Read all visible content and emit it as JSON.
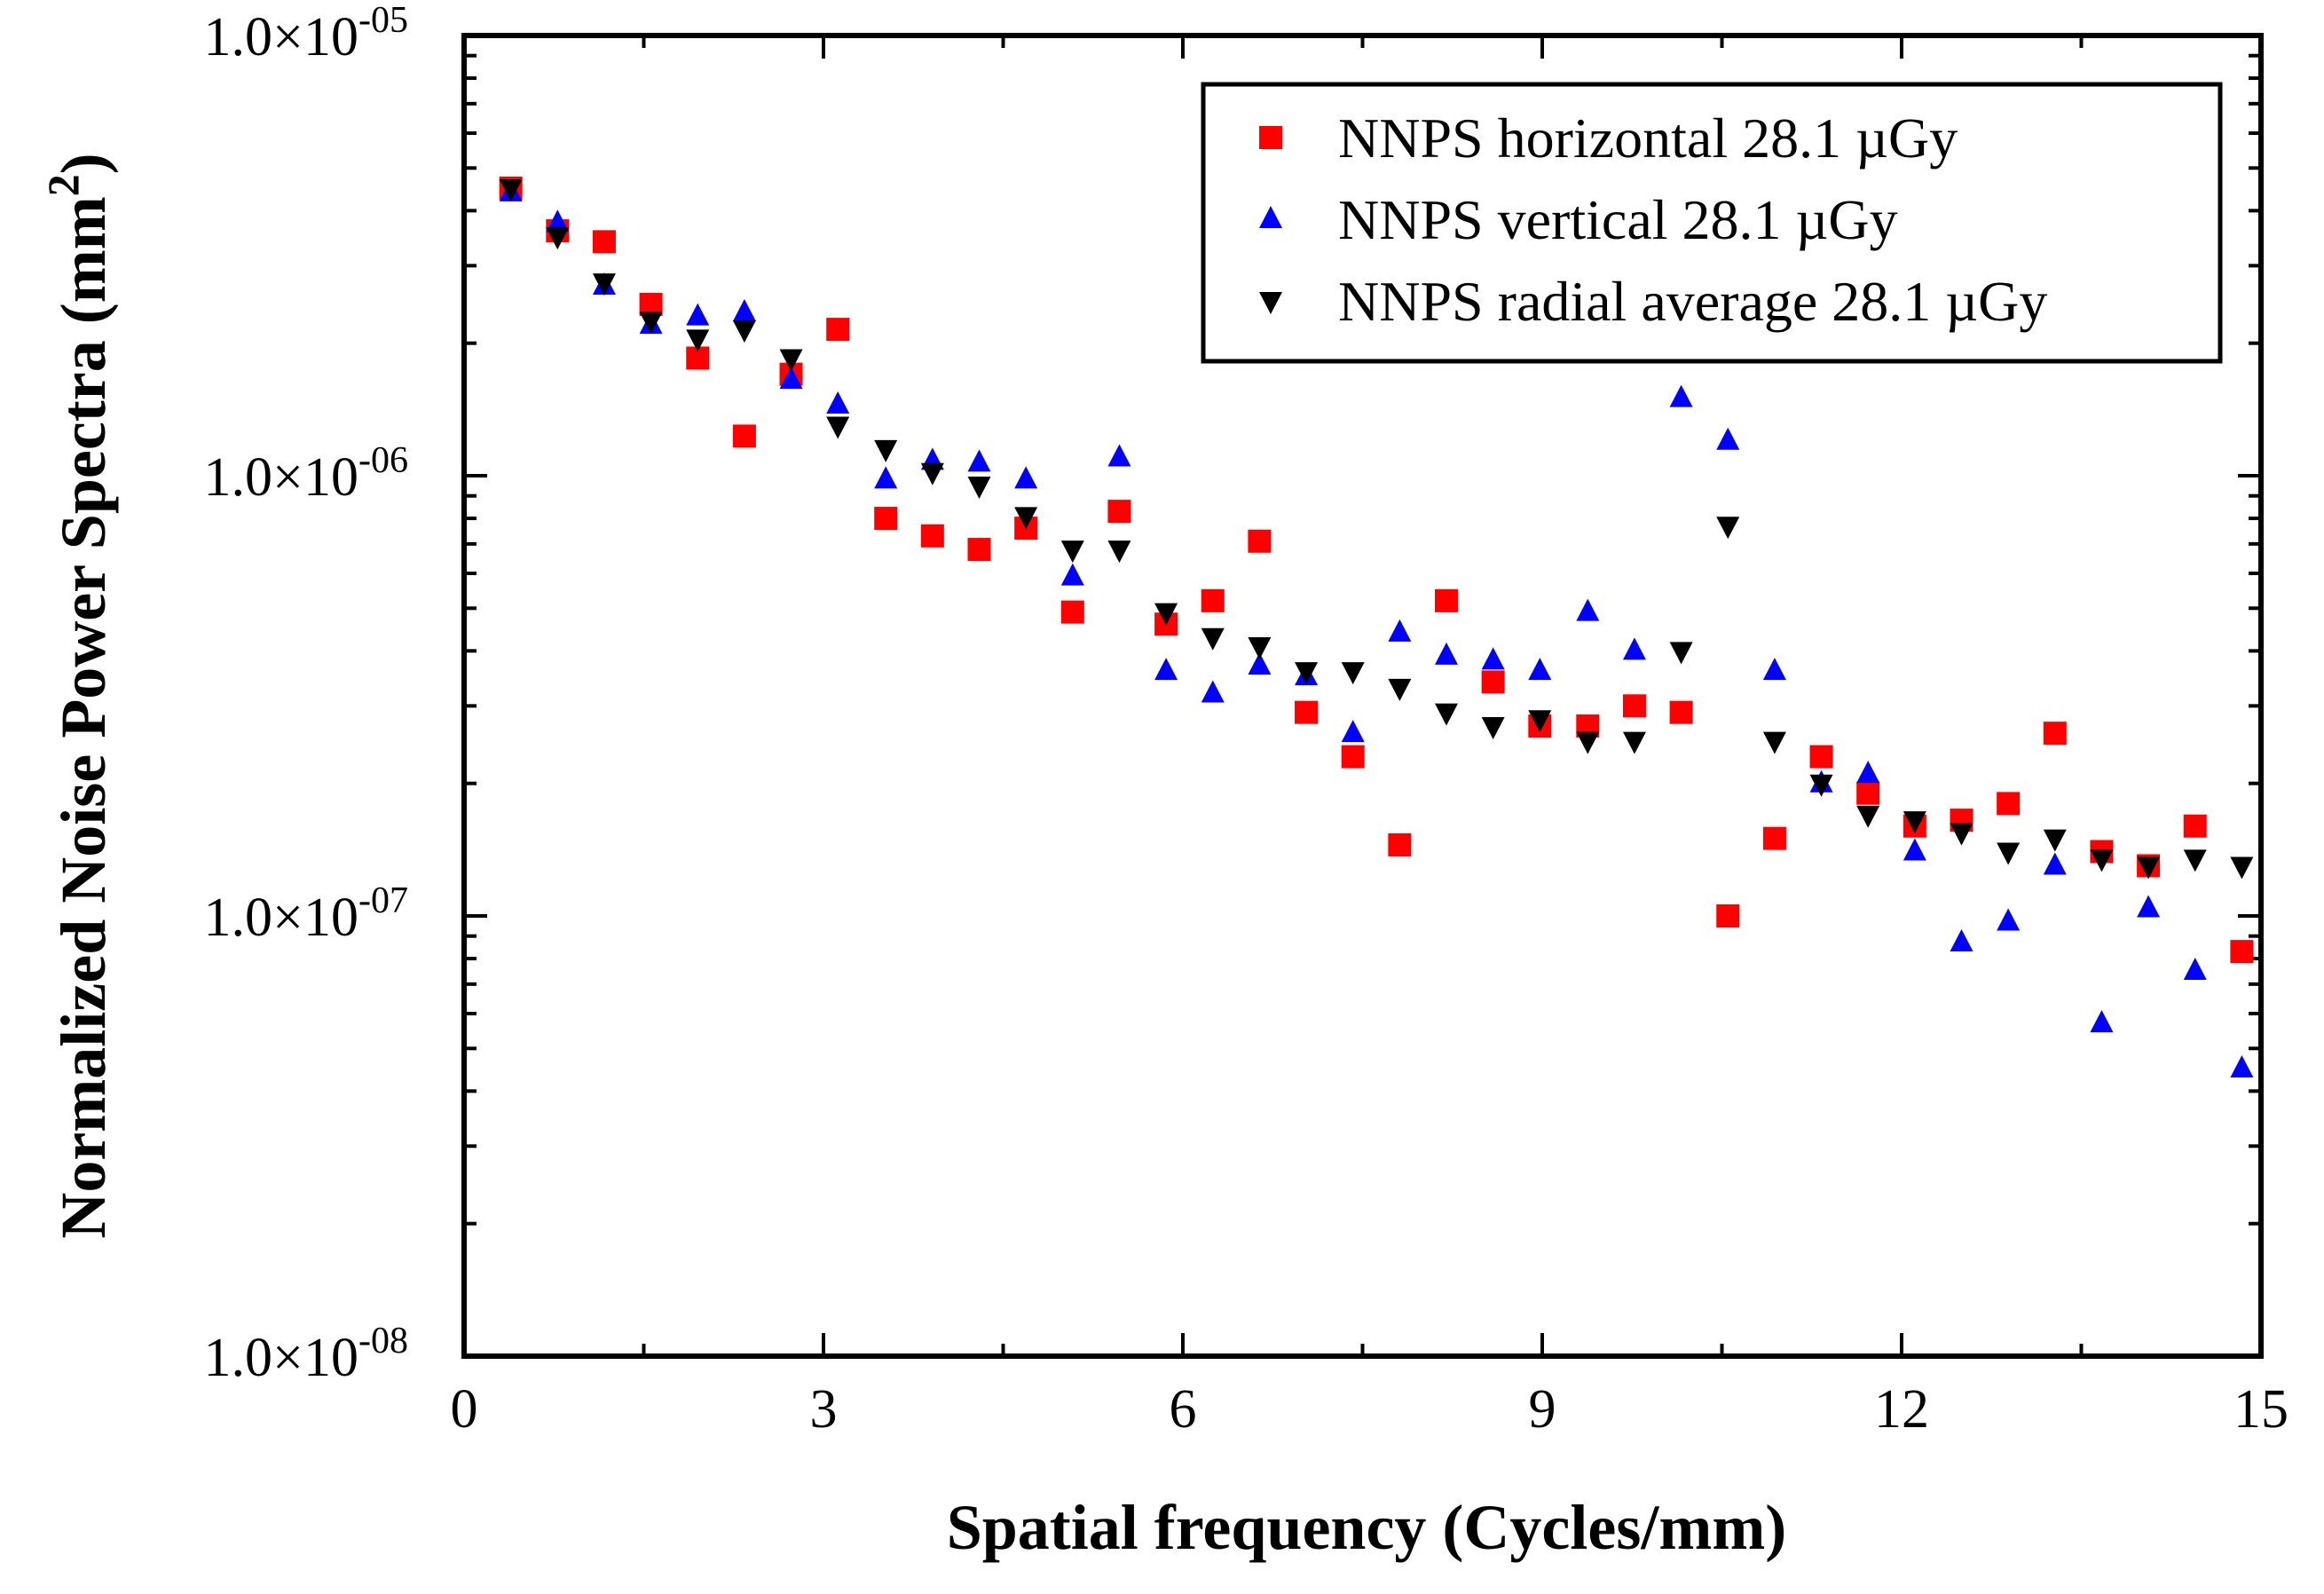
{
  "chart_data": {
    "type": "scatter",
    "title": "",
    "xlabel": "Spatial frequency (Cycles/mm)",
    "ylabel": "Normalized Noise Power Spectra (mm",
    "ylabel_sup": "2",
    "ylabel_close": ")",
    "xlim": [
      0,
      15
    ],
    "ylim": [
      1e-08,
      1e-05
    ],
    "yscale": "log",
    "grid": false,
    "legend_position": "top-right",
    "x_ticks": [
      {
        "value": 0,
        "label": "0"
      },
      {
        "value": 3,
        "label": "3"
      },
      {
        "value": 6,
        "label": "6"
      },
      {
        "value": 9,
        "label": "9"
      },
      {
        "value": 12,
        "label": "12"
      },
      {
        "value": 15,
        "label": "15"
      }
    ],
    "y_ticks": [
      {
        "value": 1e-05,
        "mantissa": "1.0×10",
        "exponent": "-05"
      },
      {
        "value": 1e-06,
        "mantissa": "1.0×10",
        "exponent": "-06"
      },
      {
        "value": 1e-07,
        "mantissa": "1.0×10",
        "exponent": "-07"
      },
      {
        "value": 1e-08,
        "mantissa": "1.0×10",
        "exponent": "-08"
      }
    ],
    "x": [
      0.39,
      0.78,
      1.17,
      1.56,
      1.95,
      2.34,
      2.73,
      3.12,
      3.52,
      3.91,
      4.3,
      4.69,
      5.08,
      5.47,
      5.86,
      6.25,
      6.64,
      7.03,
      7.42,
      7.81,
      8.2,
      8.59,
      8.98,
      9.38,
      9.77,
      10.16,
      10.55,
      10.94,
      11.33,
      11.72,
      12.11,
      12.5,
      12.89,
      13.28,
      13.67,
      14.06,
      14.45,
      14.84
    ],
    "series": [
      {
        "name": "NNPS horizontal 28.1 µGy",
        "marker": "square",
        "color": "#ff0000",
        "values": [
          4.5e-06,
          3.6e-06,
          3.4e-06,
          2.45e-06,
          1.85e-06,
          1.23e-06,
          1.7e-06,
          2.15e-06,
          8e-07,
          7.3e-07,
          6.8e-07,
          7.6e-07,
          4.9e-07,
          8.3e-07,
          4.6e-07,
          5.2e-07,
          7.1e-07,
          2.9e-07,
          2.3e-07,
          1.45e-07,
          5.2e-07,
          3.4e-07,
          2.7e-07,
          2.7e-07,
          3e-07,
          2.9e-07,
          1e-07,
          1.5e-07,
          2.3e-07,
          1.9e-07,
          1.6e-07,
          1.65e-07,
          1.8e-07,
          2.6e-07,
          1.4e-07,
          1.3e-07,
          1.6e-07,
          8.3e-08
        ]
      },
      {
        "name": "NNPS vertical 28.1 µGy",
        "marker": "triangle-up",
        "color": "#0000ff",
        "values": [
          4.4e-06,
          3.75e-06,
          2.7e-06,
          2.2e-06,
          2.3e-06,
          2.35e-06,
          1.65e-06,
          1.45e-06,
          9.8e-07,
          1.08e-06,
          1.07e-06,
          9.8e-07,
          5.9e-07,
          1.1e-06,
          3.6e-07,
          3.2e-07,
          3.7e-07,
          3.5e-07,
          2.6e-07,
          4.4e-07,
          3.9e-07,
          3.8e-07,
          3.6e-07,
          4.9e-07,
          4e-07,
          1.5e-06,
          1.2e-06,
          3.6e-07,
          2e-07,
          2.1e-07,
          1.4e-07,
          8.7e-08,
          9.7e-08,
          1.3e-07,
          5.7e-08,
          1.04e-07,
          7.5e-08,
          4.5e-08
        ]
      },
      {
        "name": "NNPS radial average 28.1 µGy",
        "marker": "triangle-down",
        "color": "#000000",
        "values": [
          4.5e-06,
          3.5e-06,
          2.75e-06,
          2.25e-06,
          2.05e-06,
          2.15e-06,
          1.85e-06,
          1.3e-06,
          1.15e-06,
          1.02e-06,
          9.5e-07,
          8.1e-07,
          6.8e-07,
          6.8e-07,
          4.9e-07,
          4.3e-07,
          4.1e-07,
          3.6e-07,
          3.6e-07,
          3.3e-07,
          2.9e-07,
          2.7e-07,
          2.8e-07,
          2.5e-07,
          2.5e-07,
          4e-07,
          7.7e-07,
          2.5e-07,
          2e-07,
          1.7e-07,
          1.65e-07,
          1.55e-07,
          1.4e-07,
          1.5e-07,
          1.35e-07,
          1.3e-07,
          1.35e-07,
          1.3e-07
        ]
      }
    ]
  }
}
